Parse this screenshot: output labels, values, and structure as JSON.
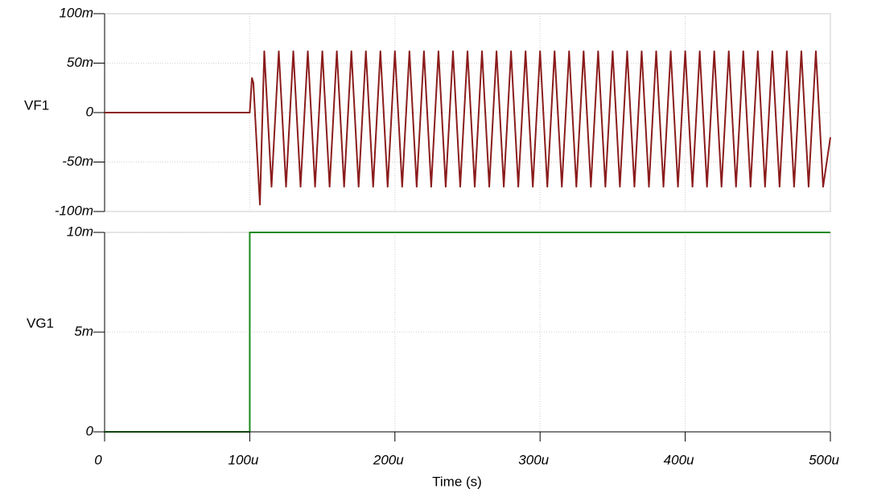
{
  "chart_data": [
    {
      "type": "line",
      "x": [
        0,
        100,
        101.5,
        102.5,
        107,
        110,
        115,
        120,
        125,
        130,
        135,
        140,
        145,
        150,
        155,
        160,
        165,
        170,
        175,
        180,
        185,
        190,
        195,
        200,
        205,
        210,
        215,
        220,
        225,
        230,
        235,
        240,
        245,
        250,
        255,
        260,
        265,
        270,
        275,
        280,
        285,
        290,
        295,
        300,
        305,
        310,
        315,
        320,
        325,
        330,
        335,
        340,
        345,
        350,
        355,
        360,
        365,
        370,
        375,
        380,
        385,
        390,
        395,
        400,
        405,
        410,
        415,
        420,
        425,
        430,
        435,
        440,
        445,
        450,
        455,
        460,
        465,
        470,
        475,
        480,
        485,
        490,
        495,
        500
      ],
      "series": [
        {
          "name": "VF1",
          "color": "#8b1c1c",
          "values": [
            0,
            0,
            35,
            30,
            -93,
            62,
            -75,
            62,
            -75,
            62,
            -75,
            62,
            -75,
            62,
            -75,
            62,
            -75,
            62,
            -75,
            62,
            -75,
            62,
            -75,
            62,
            -75,
            62,
            -75,
            62,
            -75,
            62,
            -75,
            62,
            -75,
            62,
            -75,
            62,
            -75,
            62,
            -75,
            62,
            -75,
            62,
            -75,
            62,
            -75,
            62,
            -75,
            62,
            -75,
            62,
            -75,
            62,
            -75,
            62,
            -75,
            62,
            -75,
            62,
            -75,
            62,
            -75,
            62,
            -75,
            62,
            -75,
            62,
            -75,
            62,
            -75,
            62,
            -75,
            62,
            -75,
            62,
            -75,
            62,
            -75,
            62,
            -75,
            62,
            -75,
            62,
            -75,
            -25
          ]
        }
      ],
      "xlim": [
        0,
        500
      ],
      "ylim": [
        -100,
        100
      ],
      "yticks": [
        {
          "value": -100,
          "label": "-100m"
        },
        {
          "value": -50,
          "label": "-50m"
        },
        0,
        {
          "value": 50,
          "label": "50m"
        },
        {
          "value": 100,
          "label": "100m"
        }
      ],
      "grid": true
    },
    {
      "type": "line",
      "x": [
        0,
        100,
        100,
        500
      ],
      "series": [
        {
          "name": "VG1",
          "color": "#1a8a1a",
          "values": [
            0,
            0,
            10,
            10
          ]
        }
      ],
      "xlim": [
        0,
        500
      ],
      "ylim": [
        0,
        10
      ],
      "yticks": [
        0,
        {
          "value": 5,
          "label": "5m"
        },
        {
          "value": 10,
          "label": "10m"
        }
      ],
      "xticks": [
        0,
        {
          "value": 100,
          "label": "100u"
        },
        {
          "value": 200,
          "label": "200u"
        },
        {
          "value": 300,
          "label": "300u"
        },
        {
          "value": 400,
          "label": "400u"
        },
        {
          "value": 500,
          "label": "500u"
        }
      ],
      "xlabel": "Time (s)",
      "grid": true
    }
  ]
}
